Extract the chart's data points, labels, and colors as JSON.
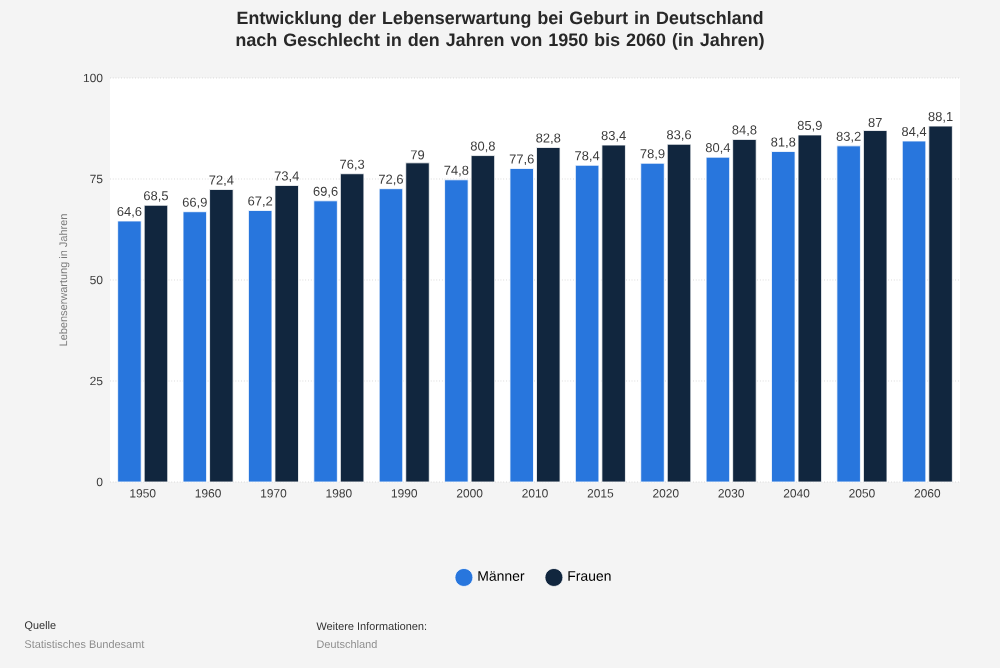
{
  "chart_data": {
    "type": "bar",
    "title": "Entwicklung der Lebenserwartung bei Geburt in Deutschland nach Geschlecht in den Jahren von 1950 bis 2060 (in Jahren)",
    "ylabel": "Lebenserwartung in Jahren",
    "categories": [
      "1950",
      "1960",
      "1970",
      "1980",
      "1990",
      "2000",
      "2010",
      "2015",
      "2020",
      "2030",
      "2040",
      "2050",
      "2060"
    ],
    "series": [
      {
        "name": "Männer",
        "color": "#2876dd",
        "values": [
          64.6,
          66.9,
          67.2,
          69.6,
          72.6,
          74.8,
          77.6,
          78.4,
          78.9,
          80.4,
          81.8,
          83.2,
          84.4
        ],
        "value_labels": [
          "64,6",
          "66,9",
          "67,2",
          "69,6",
          "72,6",
          "74,8",
          "77,6",
          "78,4",
          "78,9",
          "80,4",
          "81,8",
          "83,2",
          "84,4"
        ]
      },
      {
        "name": "Frauen",
        "color": "#11263e",
        "values": [
          68.5,
          72.4,
          73.4,
          76.3,
          79,
          80.8,
          82.8,
          83.4,
          83.6,
          84.8,
          85.9,
          87,
          88.1
        ],
        "value_labels": [
          "68,5",
          "72,4",
          "73,4",
          "76,3",
          "79",
          "80,8",
          "82,8",
          "83,4",
          "83,6",
          "84,8",
          "85,9",
          "87",
          "88,1"
        ]
      }
    ],
    "ylim": [
      0,
      100
    ],
    "yticks": [
      0,
      25,
      50,
      75,
      100
    ],
    "grid": "y",
    "legend": "bottom",
    "annotations": [
      "Quelle",
      "Statistisches Bundesamt",
      "Weitere Informationen:",
      "Deutschland"
    ]
  }
}
